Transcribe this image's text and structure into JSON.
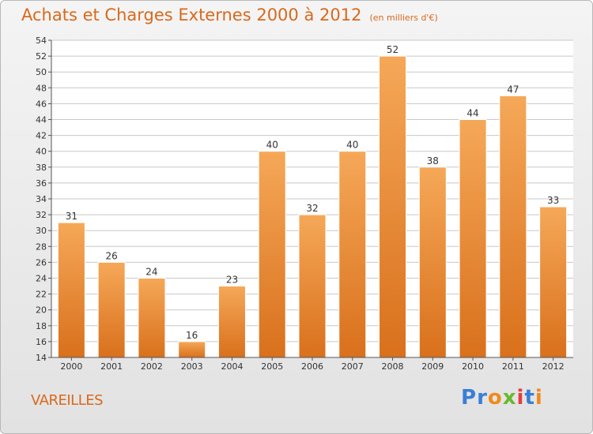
{
  "header": {
    "title": "Achats et Charges Externes 2000 à 2012",
    "subtitle": "(en milliers d'€)"
  },
  "footer": {
    "commune": "VAREILLES",
    "logo_text": "Proxiti",
    "logo_colors": [
      "#3a7fd5",
      "#3a7fd5",
      "#f08a1c",
      "#6ab82e",
      "#e83c3c",
      "#3a7fd5",
      "#f08a1c"
    ]
  },
  "colors": {
    "bar_top": "#f5a858",
    "bar_bottom": "#d9701c",
    "title": "#d9691c",
    "grid": "#c8c8c8",
    "axis_text": "#333333"
  },
  "chart_data": {
    "type": "bar",
    "title": "Achats et Charges Externes 2000 à 2012",
    "subtitle": "(en milliers d'€)",
    "categories": [
      "2000",
      "2001",
      "2002",
      "2003",
      "2004",
      "2005",
      "2006",
      "2007",
      "2008",
      "2009",
      "2010",
      "2011",
      "2012"
    ],
    "values": [
      31,
      26,
      24,
      16,
      23,
      40,
      32,
      40,
      52,
      38,
      44,
      47,
      33
    ],
    "ylim": [
      14,
      54
    ],
    "yticks": [
      14,
      16,
      18,
      20,
      22,
      24,
      26,
      28,
      30,
      32,
      34,
      36,
      38,
      40,
      42,
      44,
      46,
      48,
      50,
      52,
      54
    ],
    "grid": true,
    "data_labels": true
  }
}
